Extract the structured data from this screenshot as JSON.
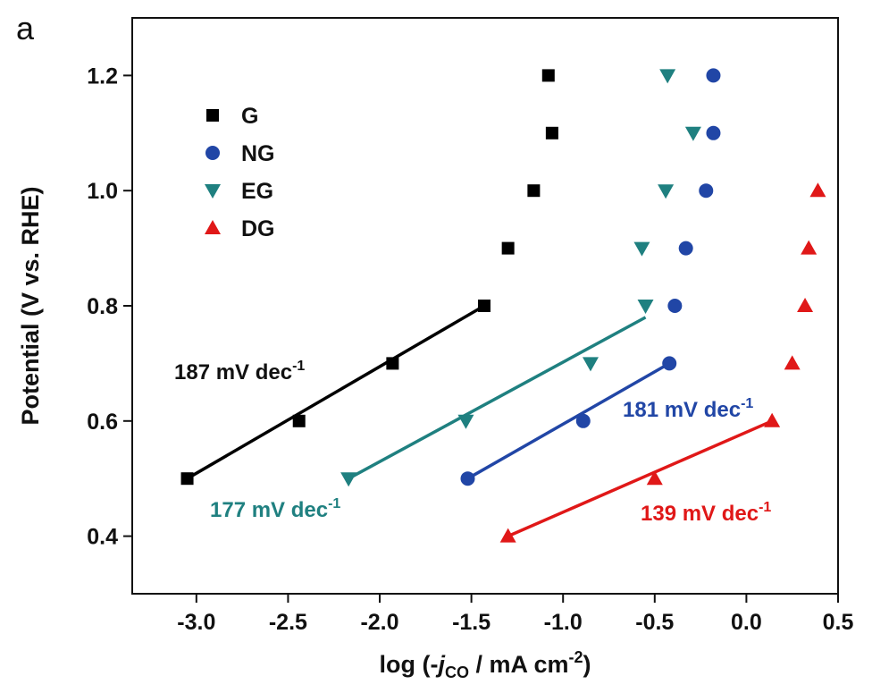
{
  "panel_label": "a",
  "chart_data": {
    "type": "scatter",
    "xlabel": {
      "prefix": "log (-",
      "var": "j",
      "sub": "CO",
      "suffix": " / mA cm",
      "sup": "-2",
      "close": ")"
    },
    "ylabel": "Potential (V vs. RHE)",
    "xlim": [
      -3.35,
      0.5
    ],
    "ylim": [
      0.3,
      1.3
    ],
    "xticks": [
      -3.0,
      -2.5,
      -2.0,
      -1.5,
      -1.0,
      -0.5,
      0.0,
      0.5
    ],
    "xtick_labels": [
      "-3.0",
      "-2.5",
      "-2.0",
      "-1.5",
      "-1.0",
      "-0.5",
      "0.0",
      "0.5"
    ],
    "yticks": [
      0.4,
      0.6,
      0.8,
      1.0,
      1.2
    ],
    "ytick_labels": [
      "0.4",
      "0.6",
      "0.8",
      "1.0",
      "1.2"
    ],
    "grid": false,
    "legend_position": "top-left",
    "series": [
      {
        "name": "G",
        "marker": "square",
        "color": "#000000",
        "points": [
          [
            -3.05,
            0.5
          ],
          [
            -2.44,
            0.6
          ],
          [
            -1.93,
            0.7
          ],
          [
            -1.43,
            0.8
          ],
          [
            -1.3,
            0.9
          ],
          [
            -1.16,
            1.0
          ],
          [
            -1.06,
            1.1
          ],
          [
            -1.08,
            1.2
          ]
        ],
        "fit": {
          "x": [
            -3.05,
            -1.43
          ],
          "y": [
            0.5,
            0.8
          ],
          "label": "187 mV dec",
          "sup": "-1"
        }
      },
      {
        "name": "NG",
        "marker": "circle",
        "color": "#2146a6",
        "points": [
          [
            -1.52,
            0.5
          ],
          [
            -0.89,
            0.6
          ],
          [
            -0.42,
            0.7
          ],
          [
            -0.39,
            0.8
          ],
          [
            -0.33,
            0.9
          ],
          [
            -0.22,
            1.0
          ],
          [
            -0.18,
            1.1
          ],
          [
            -0.18,
            1.2
          ]
        ],
        "fit": {
          "x": [
            -1.52,
            -0.42
          ],
          "y": [
            0.5,
            0.7
          ],
          "label": "181 mV dec",
          "sup": "-1"
        }
      },
      {
        "name": "EG",
        "marker": "triangle-down",
        "color": "#1f8080",
        "points": [
          [
            -2.17,
            0.5
          ],
          [
            -1.53,
            0.6
          ],
          [
            -0.85,
            0.7
          ],
          [
            -0.55,
            0.8
          ],
          [
            -0.57,
            0.9
          ],
          [
            -0.44,
            1.0
          ],
          [
            -0.29,
            1.1
          ],
          [
            -0.43,
            1.2
          ]
        ],
        "fit": {
          "x": [
            -2.17,
            -0.55
          ],
          "y": [
            0.5,
            0.78
          ],
          "label": "177 mV dec",
          "sup": "-1"
        }
      },
      {
        "name": "DG",
        "marker": "triangle-up",
        "color": "#e01818",
        "points": [
          [
            -1.3,
            0.4
          ],
          [
            -0.5,
            0.5
          ],
          [
            0.14,
            0.6
          ],
          [
            0.25,
            0.7
          ],
          [
            0.32,
            0.8
          ],
          [
            0.34,
            0.9
          ],
          [
            0.39,
            1.0
          ]
        ],
        "fit": {
          "x": [
            -1.3,
            0.14
          ],
          "y": [
            0.4,
            0.6
          ],
          "label": "139 mV dec",
          "sup": "-1"
        }
      }
    ]
  }
}
